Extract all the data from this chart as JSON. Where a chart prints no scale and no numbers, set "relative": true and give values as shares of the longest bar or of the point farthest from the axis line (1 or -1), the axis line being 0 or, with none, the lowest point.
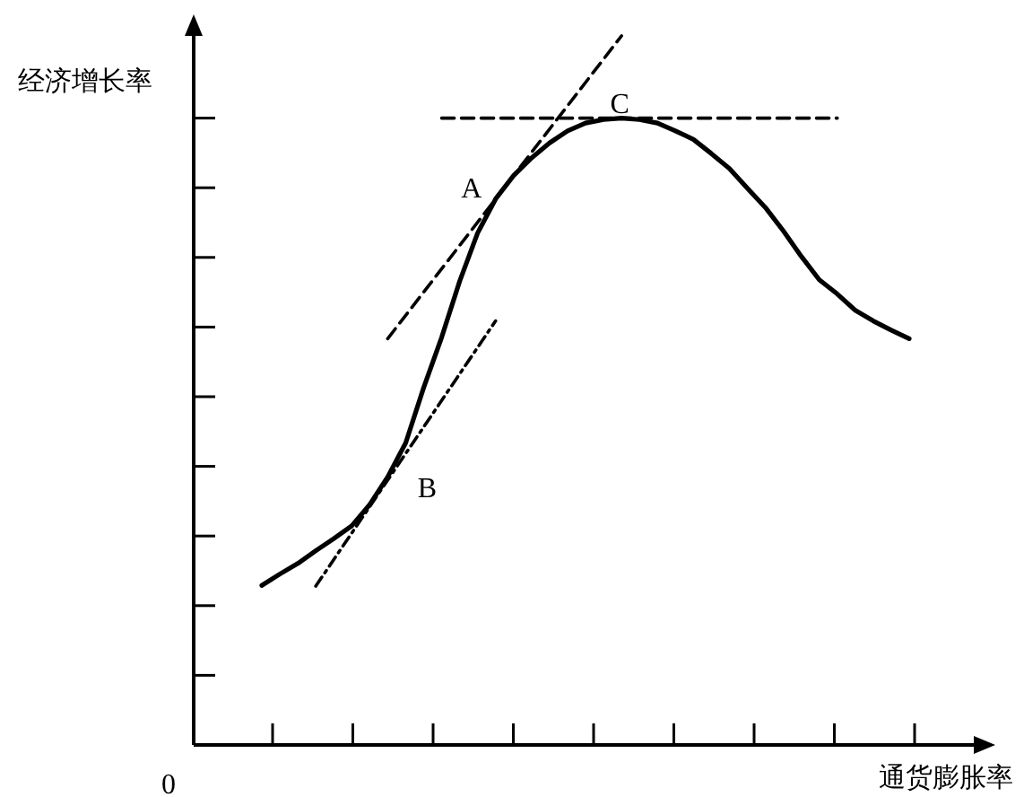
{
  "chart_data": {
    "type": "line",
    "relative": true,
    "xlabel": "通货膨胀率",
    "ylabel": "经济增长率",
    "categories": [
      null,
      null,
      null,
      null,
      null,
      null,
      null,
      null,
      null,
      null,
      null,
      null,
      null,
      null,
      null,
      null,
      null,
      null,
      null,
      null,
      null,
      null,
      null,
      null,
      null,
      null,
      null,
      null,
      null,
      null,
      null,
      null,
      null,
      null,
      null,
      null,
      null
    ],
    "series": [
      {
        "color": "#000000",
        "line_style": "solid",
        "values": [
          0.225,
          0.241,
          0.256,
          0.274,
          0.291,
          0.309,
          0.339,
          0.378,
          0.426,
          0.504,
          0.575,
          0.654,
          0.722,
          0.77,
          0.803,
          0.828,
          0.849,
          0.866,
          0.877,
          0.882,
          0.884,
          0.882,
          0.877,
          0.866,
          0.854,
          0.834,
          0.813,
          0.785,
          0.758,
          0.725,
          0.689,
          0.656,
          0.636,
          0.613,
          0.598,
          0.585,
          0.573
        ]
      },
      {
        "name": "A",
        "color": "#000000",
        "line_style": "dashed",
        "values": [
          null,
          null,
          null,
          null,
          null,
          null,
          null,
          0.573,
          null,
          null,
          null,
          null,
          null,
          null,
          null,
          null,
          null,
          null,
          null,
          null,
          1,
          null,
          null,
          null,
          null,
          null,
          null,
          null,
          null,
          null,
          null,
          null,
          null,
          null,
          null,
          null,
          null
        ]
      },
      {
        "name": "B",
        "color": "#000000",
        "line_style": "dashdot",
        "values": [
          null,
          null,
          null,
          0.224,
          null,
          null,
          null,
          null,
          null,
          null,
          null,
          null,
          null,
          0.598,
          null,
          null,
          null,
          null,
          null,
          null,
          null,
          null,
          null,
          null,
          null,
          null,
          null,
          null,
          null,
          null,
          null,
          null,
          null,
          null,
          null,
          null,
          null
        ]
      },
      {
        "name": "C",
        "color": "#000000",
        "line_style": "dashed",
        "values": [
          null,
          null,
          null,
          null,
          null,
          null,
          null,
          null,
          null,
          null,
          0.884,
          0.884,
          0.884,
          0.884,
          0.884,
          0.884,
          0.884,
          0.884,
          0.884,
          0.884,
          0.884,
          0.884,
          0.884,
          0.884,
          0.884,
          0.884,
          0.884,
          0.884,
          0.884,
          0.884,
          0.884,
          0.884,
          0.884,
          null,
          null,
          null,
          null
        ]
      }
    ],
    "annotations": [
      "0"
    ],
    "marker": "none"
  }
}
